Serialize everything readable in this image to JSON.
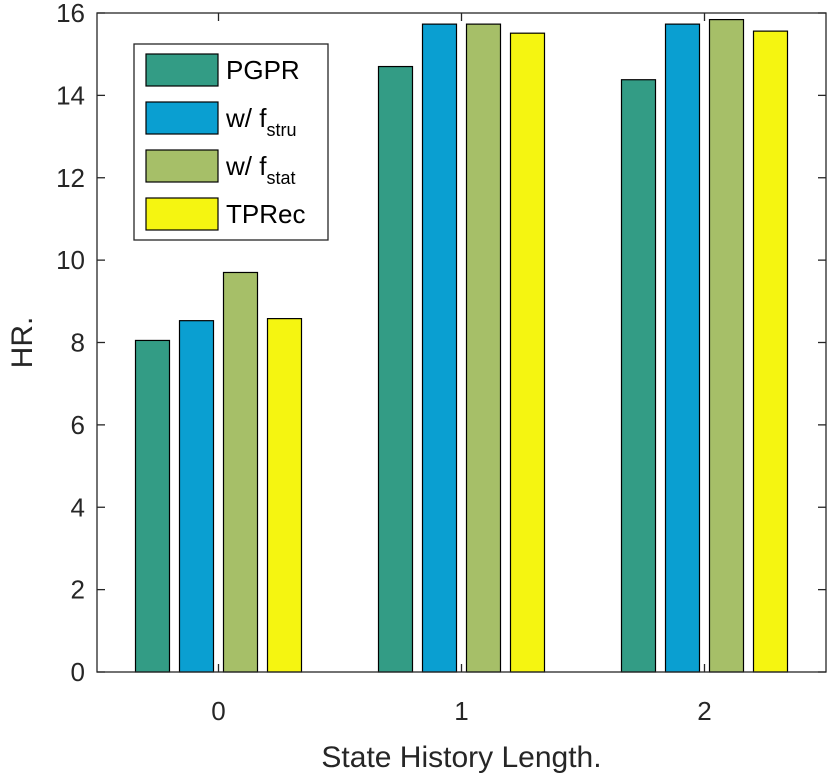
{
  "chart_data": {
    "type": "bar",
    "xlabel": "State History Length.",
    "ylabel": "HR.",
    "categories": [
      "0",
      "1",
      "2"
    ],
    "ylim": [
      0,
      16
    ],
    "yticks": [
      0,
      2,
      4,
      6,
      8,
      10,
      12,
      14,
      16
    ],
    "yticks_text": [
      "0",
      "2",
      "4",
      "6",
      "8",
      "10",
      "12",
      "14",
      "16"
    ],
    "grid": false,
    "legend_position": "top-left",
    "series": [
      {
        "name": "PGPR",
        "name_main": "PGPR",
        "name_sub": "",
        "color": "#339c85",
        "values": [
          8.05,
          14.7,
          14.38
        ]
      },
      {
        "name": "w/ f_stru",
        "name_main": "w/ f",
        "name_sub": "stru",
        "color": "#0a9fd1",
        "values": [
          8.53,
          15.73,
          15.73
        ]
      },
      {
        "name": "w/ f_stat",
        "name_main": "w/ f",
        "name_sub": "stat",
        "color": "#a6bf68",
        "values": [
          9.7,
          15.73,
          15.84
        ]
      },
      {
        "name": "TPRec",
        "name_main": "TPRec",
        "name_sub": "",
        "color": "#f5f511",
        "values": [
          8.58,
          15.51,
          15.56
        ]
      }
    ]
  }
}
